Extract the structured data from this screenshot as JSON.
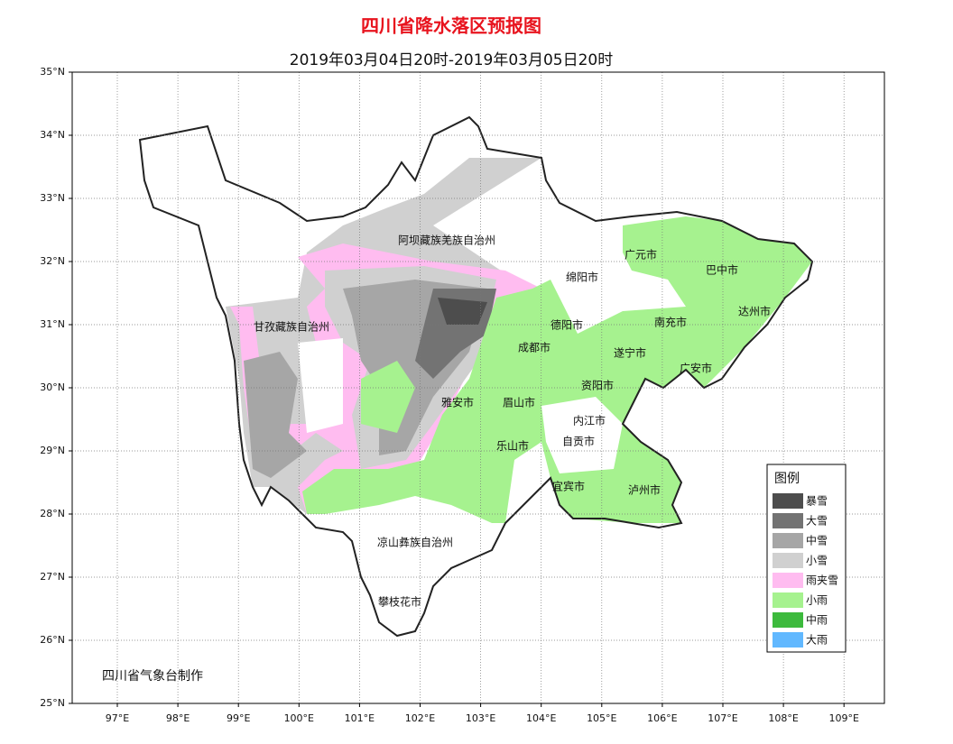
{
  "title": "四川省降水落区预报图",
  "subtitle": "2019年03月04日20时-2019年03月05日20时",
  "credit": "四川省气象台制作",
  "lat_ticks": [
    {
      "value": 35,
      "label": "35°N"
    },
    {
      "value": 34,
      "label": "34°N"
    },
    {
      "value": 33,
      "label": "33°N"
    },
    {
      "value": 32,
      "label": "32°N"
    },
    {
      "value": 31,
      "label": "31°N"
    },
    {
      "value": 30,
      "label": "30°N"
    },
    {
      "value": 29,
      "label": "29°N"
    },
    {
      "value": 28,
      "label": "28°N"
    },
    {
      "value": 27,
      "label": "27°N"
    },
    {
      "value": 26,
      "label": "26°N"
    },
    {
      "value": 25,
      "label": "25°N"
    }
  ],
  "lon_ticks": [
    {
      "value": 97,
      "label": "97°E"
    },
    {
      "value": 98,
      "label": "98°E"
    },
    {
      "value": 99,
      "label": "99°E"
    },
    {
      "value": 100,
      "label": "100°E"
    },
    {
      "value": 101,
      "label": "101°E"
    },
    {
      "value": 102,
      "label": "102°E"
    },
    {
      "value": 103,
      "label": "103°E"
    },
    {
      "value": 104,
      "label": "104°E"
    },
    {
      "value": 105,
      "label": "105°E"
    },
    {
      "value": 106,
      "label": "106°E"
    },
    {
      "value": 107,
      "label": "107°E"
    },
    {
      "value": 108,
      "label": "108°E"
    },
    {
      "value": 109,
      "label": "109°E"
    }
  ],
  "cities": [
    "阿坝藏族羌族自治州",
    "广元市",
    "巴中市",
    "绵阳市",
    "达州市",
    "甘孜藏族自治州",
    "德阳市",
    "南充市",
    "成都市",
    "遂宁市",
    "广安市",
    "资阳市",
    "雅安市",
    "眉山市",
    "内江市",
    "自贡市",
    "乐山市",
    "宜宾市",
    "泸州市",
    "凉山彝族自治州",
    "攀枝花市"
  ],
  "legend": {
    "title": "图例",
    "items": [
      {
        "label": "暴雪",
        "color": "#4d4d4d"
      },
      {
        "label": "大雪",
        "color": "#737373"
      },
      {
        "label": "中雪",
        "color": "#a6a6a6"
      },
      {
        "label": "小雪",
        "color": "#d0d0d0"
      },
      {
        "label": "雨夹雪",
        "color": "#ffbcf0"
      },
      {
        "label": "小雨",
        "color": "#a6f28f"
      },
      {
        "label": "中雨",
        "color": "#3dba3d"
      },
      {
        "label": "大雨",
        "color": "#61b8ff"
      }
    ]
  }
}
